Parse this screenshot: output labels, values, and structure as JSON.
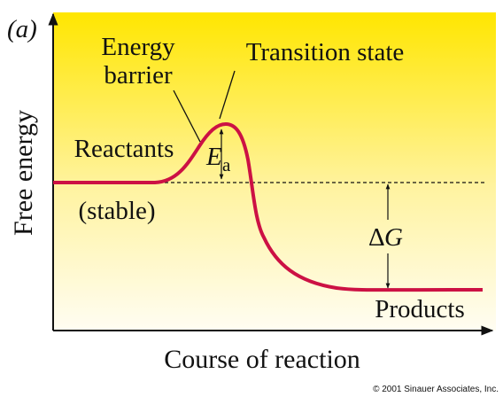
{
  "panel_label": "(a)",
  "labels": {
    "energy_barrier": [
      "Energy",
      "barrier"
    ],
    "transition_state": "Transition state",
    "reactants": "Reactants",
    "reactants_note": "(stable)",
    "activation_energy": {
      "symbol": "E",
      "subscript": "a"
    },
    "free_energy_change": {
      "symbol": "Δ",
      "letter": "G"
    },
    "products": "Products"
  },
  "axes": {
    "y_label": "Free energy",
    "x_label": "Course of reaction"
  },
  "copyright": "© 2001 Sinauer Associates, Inc."
}
